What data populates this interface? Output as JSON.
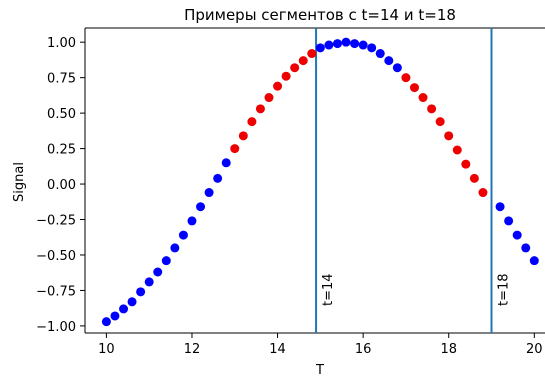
{
  "chart_data": {
    "type": "scatter",
    "title": "Примеры сегментов с t=14 и t=18",
    "xlabel": "T",
    "ylabel": "Signal",
    "xlim": [
      9.5,
      20.25
    ],
    "ylim": [
      -1.05,
      1.1
    ],
    "x_ticks": [
      10,
      12,
      14,
      16,
      18,
      20
    ],
    "x_tick_labels": [
      "10",
      "12",
      "14",
      "16",
      "18",
      "20"
    ],
    "y_ticks": [
      -1.0,
      -0.75,
      -0.5,
      -0.25,
      0.0,
      0.25,
      0.5,
      0.75,
      1.0
    ],
    "y_tick_labels": [
      "−1.00",
      "−0.75",
      "−0.50",
      "−0.25",
      "0.00",
      "0.25",
      "0.50",
      "0.75",
      "1.00"
    ],
    "grid": false,
    "marker_colors": {
      "outside_segment": "#0000ff",
      "inside_segment": "#ee0000"
    },
    "series": [
      {
        "color": "#0000ff",
        "points": [
          [
            10.0,
            -0.97
          ],
          [
            10.2,
            -0.93
          ],
          [
            10.4,
            -0.88
          ],
          [
            10.6,
            -0.83
          ],
          [
            10.8,
            -0.76
          ],
          [
            11.0,
            -0.69
          ],
          [
            11.2,
            -0.62
          ],
          [
            11.4,
            -0.54
          ],
          [
            11.6,
            -0.45
          ],
          [
            11.8,
            -0.36
          ],
          [
            12.0,
            -0.26
          ],
          [
            12.2,
            -0.16
          ],
          [
            12.4,
            -0.06
          ],
          [
            12.6,
            0.04
          ],
          [
            12.8,
            0.15
          ],
          [
            15.0,
            0.96
          ],
          [
            15.2,
            0.98
          ],
          [
            15.4,
            0.99
          ],
          [
            15.6,
            1.0
          ],
          [
            15.8,
            0.99
          ],
          [
            16.0,
            0.98
          ],
          [
            16.2,
            0.96
          ],
          [
            16.4,
            0.92
          ],
          [
            16.6,
            0.87
          ],
          [
            16.8,
            0.82
          ],
          [
            19.2,
            -0.16
          ],
          [
            19.4,
            -0.26
          ],
          [
            19.6,
            -0.36
          ],
          [
            19.8,
            -0.45
          ],
          [
            20.0,
            -0.54
          ]
        ]
      },
      {
        "color": "#ee0000",
        "points": [
          [
            13.0,
            0.25
          ],
          [
            13.2,
            0.34
          ],
          [
            13.4,
            0.44
          ],
          [
            13.6,
            0.53
          ],
          [
            13.8,
            0.61
          ],
          [
            14.0,
            0.69
          ],
          [
            14.2,
            0.76
          ],
          [
            14.4,
            0.82
          ],
          [
            14.6,
            0.87
          ],
          [
            14.8,
            0.92
          ],
          [
            17.0,
            0.75
          ],
          [
            17.2,
            0.68
          ],
          [
            17.4,
            0.61
          ],
          [
            17.6,
            0.53
          ],
          [
            17.8,
            0.44
          ],
          [
            18.0,
            0.34
          ],
          [
            18.2,
            0.24
          ],
          [
            18.4,
            0.14
          ],
          [
            18.6,
            0.04
          ],
          [
            18.8,
            -0.06
          ]
        ]
      }
    ],
    "vlines": [
      {
        "x": 14.9,
        "label": "t=14",
        "color": "#1f77b4"
      },
      {
        "x": 19.0,
        "label": "t=18",
        "color": "#1f77b4"
      }
    ]
  }
}
